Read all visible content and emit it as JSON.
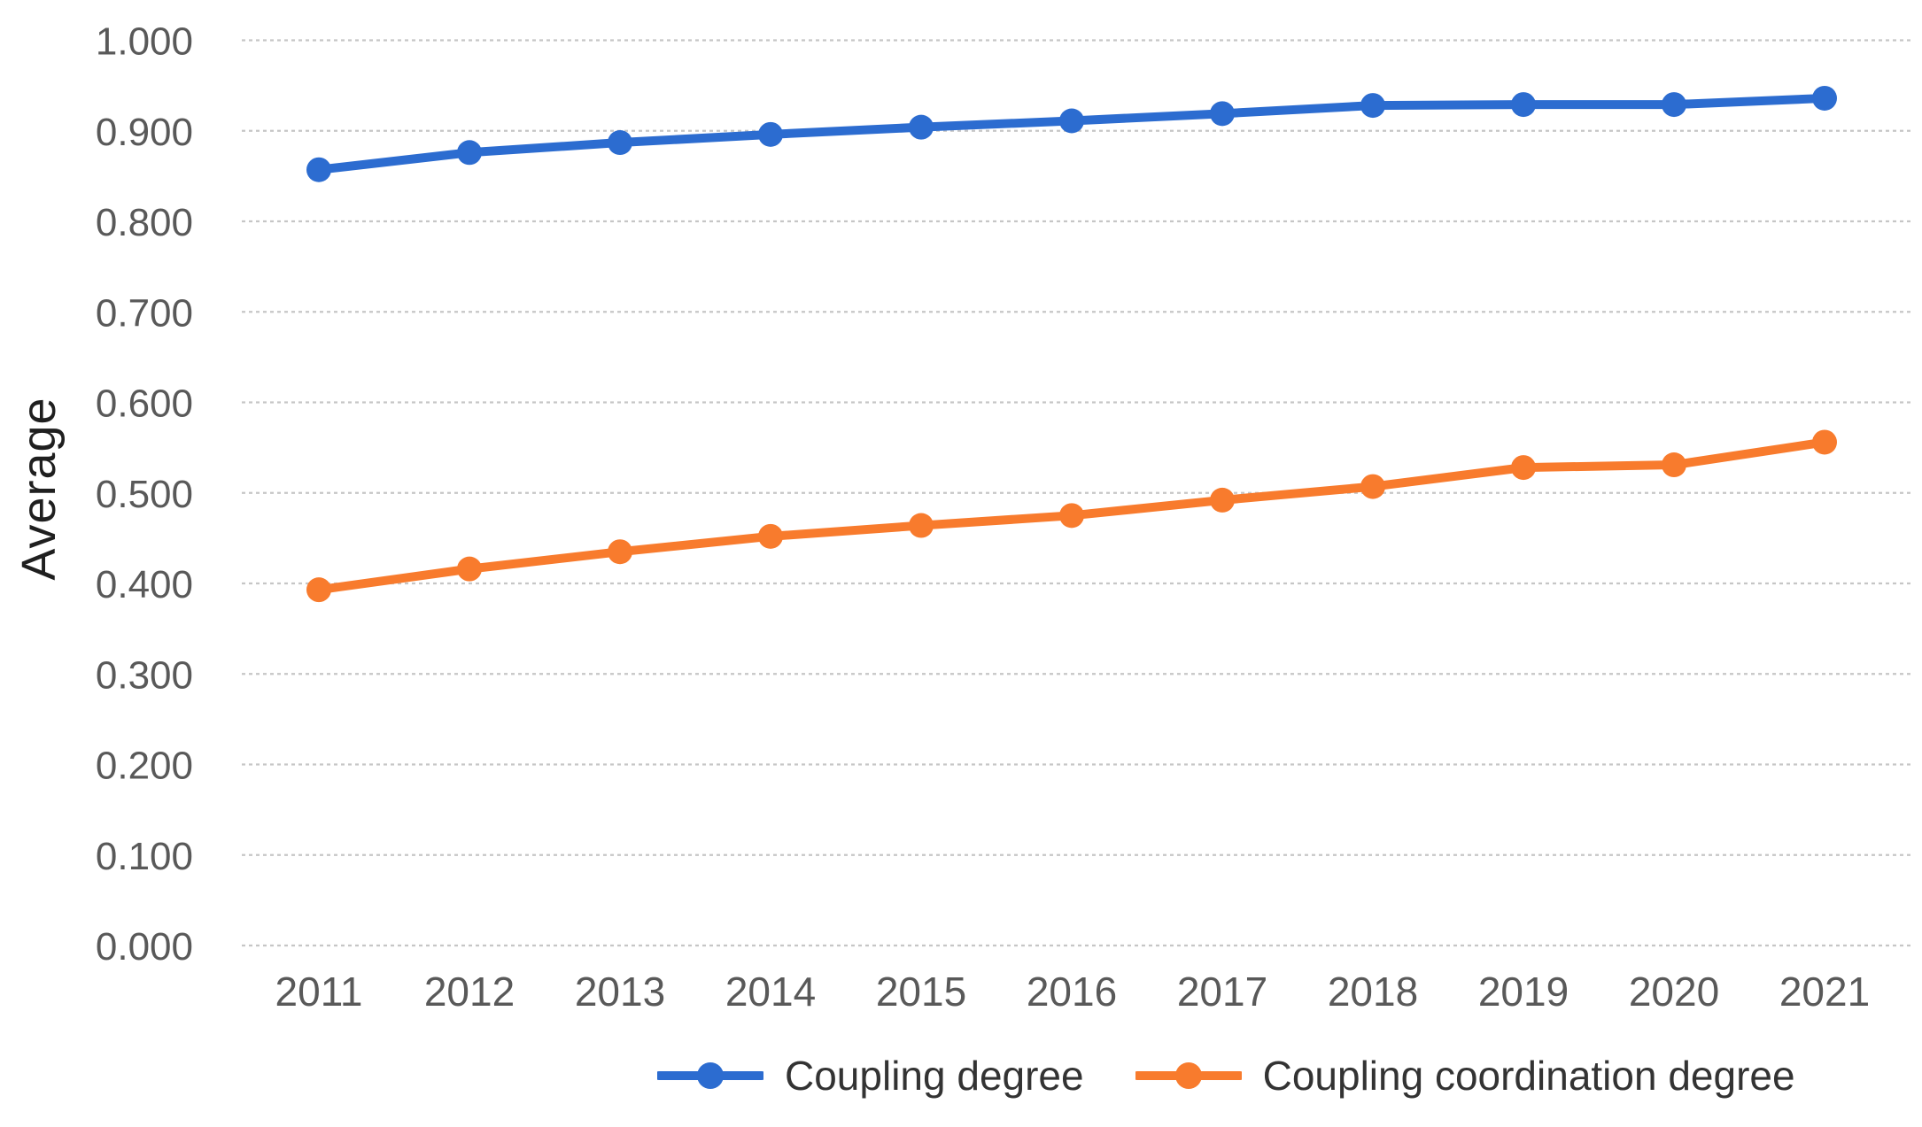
{
  "chart_data": {
    "type": "line",
    "title": "",
    "xlabel": "",
    "ylabel": "Average",
    "x_categories": [
      "2011",
      "2012",
      "2013",
      "2014",
      "2015",
      "2016",
      "2017",
      "2018",
      "2019",
      "2020",
      "2021"
    ],
    "series": [
      {
        "name": "Coupling degree",
        "color": "#2C6CD0",
        "values": [
          0.857,
          0.876,
          0.887,
          0.896,
          0.904,
          0.911,
          0.919,
          0.928,
          0.929,
          0.929,
          0.936
        ]
      },
      {
        "name": "Coupling coordination degree",
        "color": "#F87B2D",
        "values": [
          0.393,
          0.416,
          0.435,
          0.452,
          0.464,
          0.475,
          0.492,
          0.507,
          0.528,
          0.531,
          0.556
        ]
      }
    ],
    "ylim": [
      0.0,
      1.0
    ],
    "ytick_step": 0.1,
    "yticks": [
      "0.000",
      "0.100",
      "0.200",
      "0.300",
      "0.400",
      "0.500",
      "0.600",
      "0.700",
      "0.800",
      "0.900",
      "1.000"
    ],
    "grid": "horizontal dotted gridlines",
    "legend_position": "bottom-center"
  },
  "style": {
    "grid_color": "#c6c6c6",
    "tick_label_color": "#595959",
    "legend_text_color": "#333333",
    "axis_title_color": "#1f1f1f",
    "background": "#ffffff"
  }
}
